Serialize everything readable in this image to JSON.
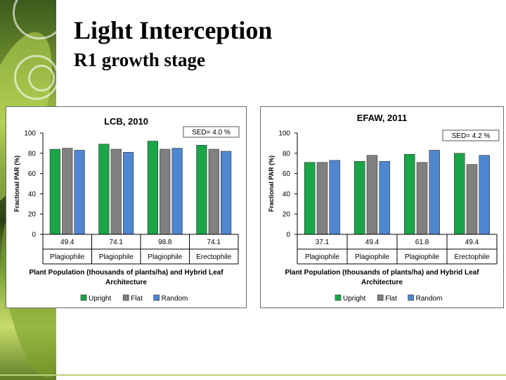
{
  "slide": {
    "title": "Light Interception",
    "subtitle": "R1 growth stage"
  },
  "colors": {
    "upright": "#1aa548",
    "flat": "#808080",
    "random": "#4f86d0"
  },
  "chart_data": [
    {
      "type": "bar",
      "title": "LCB, 2010",
      "sed": "SED= 4.0 %",
      "ylabel": "Fractional PAR (%)",
      "xlabel": "Plant Population (thousands of plants/ha) and Hybrid Leaf Architecture",
      "ylim": [
        0,
        100
      ],
      "yticks": [
        "0",
        "20",
        "40",
        "60",
        "80",
        "100"
      ],
      "populations": [
        "49.4",
        "74.1",
        "98.8",
        "74.1"
      ],
      "categories": [
        "Plagiophile",
        "Plagiophile",
        "Plagiophile",
        "Erectophile"
      ],
      "series": [
        {
          "name": "Upright",
          "values": [
            84,
            89,
            92,
            88
          ]
        },
        {
          "name": "Flat",
          "values": [
            85,
            84,
            84,
            84
          ]
        },
        {
          "name": "Random",
          "values": [
            83,
            81,
            85,
            82
          ]
        }
      ],
      "legend": [
        "Upright",
        "Flat",
        "Random"
      ]
    },
    {
      "type": "bar",
      "title": "EFAW, 2011",
      "sed": "SED= 4.2 %",
      "ylabel": "Fractional PAR (%)",
      "xlabel": "Plant Population (thousands of plants/ha) and Hybrid Leaf Architecture",
      "ylim": [
        0,
        100
      ],
      "yticks": [
        "0",
        "20",
        "40",
        "60",
        "80",
        "100"
      ],
      "populations": [
        "37.1",
        "49.4",
        "61.8",
        "49.4"
      ],
      "categories": [
        "Plagiophile",
        "Plagiophile",
        "Plagiophile",
        "Erectophile"
      ],
      "series": [
        {
          "name": "Upright",
          "values": [
            71,
            72,
            79,
            80
          ]
        },
        {
          "name": "Flat",
          "values": [
            71,
            78,
            71,
            69
          ]
        },
        {
          "name": "Random",
          "values": [
            73,
            72,
            83,
            78
          ]
        }
      ],
      "legend": [
        "Upright",
        "Flat",
        "Random"
      ]
    }
  ]
}
